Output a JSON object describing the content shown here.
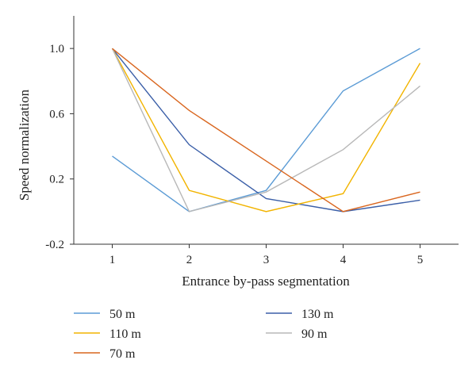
{
  "chart_data": {
    "type": "line",
    "title": "",
    "xlabel": "Entrance by-pass segmentation",
    "ylabel": "Speed normalization",
    "x": [
      1,
      2,
      3,
      4,
      5
    ],
    "xticks": [
      "1",
      "2",
      "3",
      "4",
      "5"
    ],
    "xlim": [
      0.5,
      5.5
    ],
    "ylim": [
      -0.2,
      1.2
    ],
    "yticks": [
      {
        "value": 1.0,
        "label": "1.0"
      },
      {
        "value": 0.6,
        "label": "0.6"
      },
      {
        "value": 0.2,
        "label": "0.2"
      },
      {
        "value": -0.2,
        "label": "-0.2"
      }
    ],
    "grid": false,
    "legend_position": "bottom",
    "series": [
      {
        "name": "50 m",
        "color": "#5b9bd5",
        "values": [
          0.34,
          0.0,
          0.13,
          0.74,
          1.0
        ]
      },
      {
        "name": "130 m",
        "color": "#3b5fa8",
        "values": [
          1.0,
          0.41,
          0.08,
          0.0,
          0.07
        ]
      },
      {
        "name": "110 m",
        "color": "#f2b400",
        "values": [
          1.0,
          0.13,
          0.0,
          0.11,
          0.91
        ]
      },
      {
        "name": "90 m",
        "color": "#b8b8b8",
        "values": [
          1.0,
          0.0,
          0.12,
          0.38,
          0.77
        ]
      },
      {
        "name": "70 m",
        "color": "#d9661f",
        "values": [
          1.0,
          0.62,
          0.31,
          0.0,
          0.12
        ]
      }
    ]
  }
}
